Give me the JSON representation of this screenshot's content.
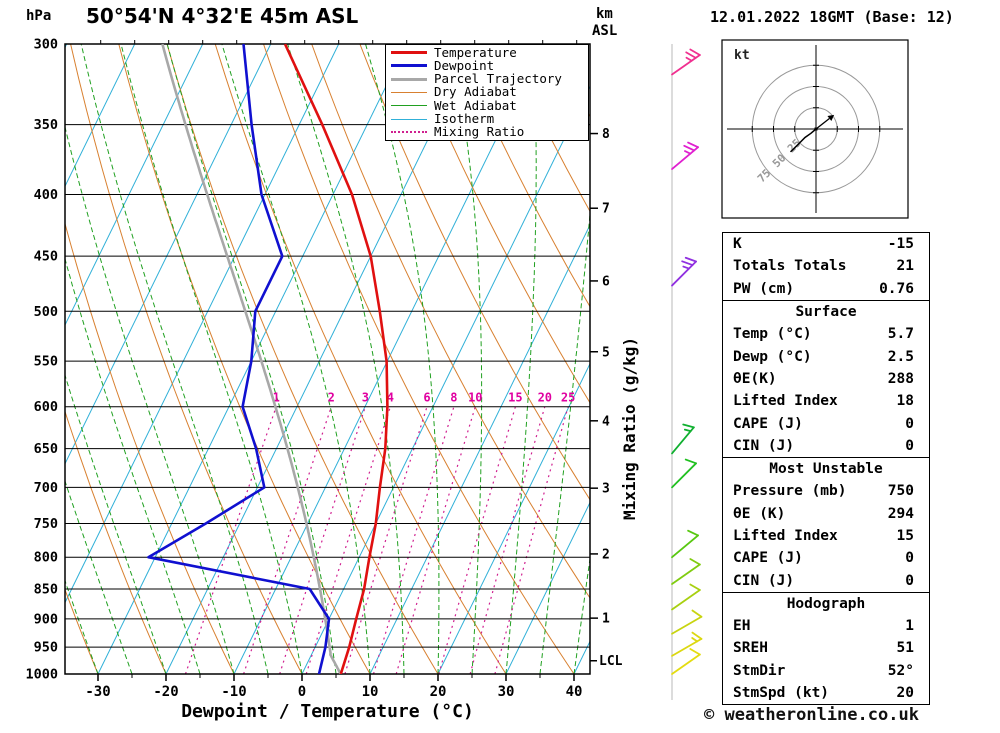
{
  "header": {
    "title": "50°54'N 4°32'E 45m ASL",
    "datetime": "12.01.2022 18GMT (Base: 12)"
  },
  "footer": {
    "copyright": "© weatheronline.co.uk"
  },
  "axes": {
    "pressure_unit": "hPa",
    "altitude_unit": "km",
    "altitude_ref": "ASL",
    "xlabel": "Dewpoint / Temperature (°C)",
    "mixing_label": "Mixing Ratio (g/kg)",
    "lcl_label": "LCL",
    "pressure_ticks": [
      300,
      350,
      400,
      450,
      500,
      550,
      600,
      650,
      700,
      750,
      800,
      850,
      900,
      950,
      1000
    ],
    "temp_ticks": [
      -30,
      -20,
      -10,
      0,
      10,
      20,
      30,
      40
    ],
    "km_ticks": [
      8,
      7,
      6,
      5,
      4,
      3,
      2,
      1
    ]
  },
  "legend": [
    {
      "label": "Temperature",
      "color": "#e01010",
      "style": "solid",
      "weight": 3
    },
    {
      "label": "Dewpoint",
      "color": "#1010d0",
      "style": "solid",
      "weight": 3
    },
    {
      "label": "Parcel Trajectory",
      "color": "#a8a8a8",
      "style": "solid",
      "weight": 3
    },
    {
      "label": "Dry Adiabat",
      "color": "#d88030",
      "style": "solid",
      "weight": 1
    },
    {
      "label": "Wet Adiabat",
      "color": "#20a020",
      "style": "solid",
      "weight": 1
    },
    {
      "label": "Isotherm",
      "color": "#30b0d8",
      "style": "solid",
      "weight": 1
    },
    {
      "label": "Mixing Ratio",
      "color": "#d02090",
      "style": "dotted",
      "weight": 2
    }
  ],
  "chart_data": {
    "type": "skewt-log-p",
    "pressure_range_hpa": [
      300,
      1000
    ],
    "temp_axis_range_c": [
      -40,
      45
    ],
    "isotherm_step_c": 10,
    "dry_adiabat_step_c": 10,
    "wet_adiabat_step_c": 5,
    "mixing_ratios": [
      1,
      2,
      3,
      4,
      6,
      8,
      10,
      15,
      20,
      25
    ],
    "temperature_profile": [
      {
        "p": 1000,
        "t": 5.7
      },
      {
        "p": 950,
        "t": 5.0
      },
      {
        "p": 900,
        "t": 4.0
      },
      {
        "p": 850,
        "t": 3.0
      },
      {
        "p": 800,
        "t": 1.5
      },
      {
        "p": 750,
        "t": 0.0
      },
      {
        "p": 700,
        "t": -2.0
      },
      {
        "p": 650,
        "t": -4.0
      },
      {
        "p": 600,
        "t": -6.7
      },
      {
        "p": 550,
        "t": -10.1
      },
      {
        "p": 500,
        "t": -14.7
      },
      {
        "p": 450,
        "t": -20.0
      },
      {
        "p": 400,
        "t": -27.2
      },
      {
        "p": 350,
        "t": -36.6
      },
      {
        "p": 300,
        "t": -47.9
      }
    ],
    "dewpoint_profile": [
      {
        "p": 1000,
        "t": 2.5
      },
      {
        "p": 950,
        "t": 1.5
      },
      {
        "p": 900,
        "t": 0.0
      },
      {
        "p": 850,
        "t": -5.0
      },
      {
        "p": 800,
        "t": -31.0
      },
      {
        "p": 750,
        "t": -25.0
      },
      {
        "p": 700,
        "t": -19.0
      },
      {
        "p": 650,
        "t": -23.0
      },
      {
        "p": 600,
        "t": -28.0
      },
      {
        "p": 550,
        "t": -30.0
      },
      {
        "p": 500,
        "t": -33.0
      },
      {
        "p": 450,
        "t": -33.0
      },
      {
        "p": 400,
        "t": -40.5
      },
      {
        "p": 350,
        "t": -47.0
      },
      {
        "p": 300,
        "t": -54.0
      }
    ],
    "parcel": {
      "surface_temp_c": 5.7,
      "surface_dewp_c": 2.5,
      "lcl_pressure_hpa": 963
    }
  },
  "hodograph": {
    "unit": "kt",
    "rings": [
      25,
      50,
      75
    ],
    "trace_uv_kt": [
      [
        0,
        0
      ],
      [
        -6,
        -5
      ],
      [
        -13,
        -10
      ],
      [
        -19,
        -16
      ],
      [
        -25,
        -22
      ],
      [
        -30,
        -27
      ]
    ],
    "storm_dir_deg": 52,
    "storm_speed_kt": 20
  },
  "wind_barbs": [
    {
      "p": 318,
      "dir_deg": 55,
      "spd_kt": 25,
      "color": "#f03090"
    },
    {
      "p": 381,
      "dir_deg": 50,
      "spd_kt": 25,
      "color": "#e020d0"
    },
    {
      "p": 476,
      "dir_deg": 45,
      "spd_kt": 25,
      "color": "#9030e0"
    },
    {
      "p": 656,
      "dir_deg": 40,
      "spd_kt": 15,
      "color": "#10b030"
    },
    {
      "p": 700,
      "dir_deg": 45,
      "spd_kt": 10,
      "color": "#20c020"
    },
    {
      "p": 800,
      "dir_deg": 50,
      "spd_kt": 10,
      "color": "#58c810"
    },
    {
      "p": 842,
      "dir_deg": 55,
      "spd_kt": 10,
      "color": "#80cc10"
    },
    {
      "p": 884,
      "dir_deg": 55,
      "spd_kt": 10,
      "color": "#a8d010"
    },
    {
      "p": 926,
      "dir_deg": 60,
      "spd_kt": 10,
      "color": "#c8d410"
    },
    {
      "p": 966,
      "dir_deg": 60,
      "spd_kt": 15,
      "color": "#dcd810"
    },
    {
      "p": 1000,
      "dir_deg": 55,
      "spd_kt": 10,
      "color": "#e4dc10"
    }
  ],
  "table": {
    "summary": [
      {
        "label": "K",
        "value": "-15"
      },
      {
        "label": "Totals Totals",
        "value": "21"
      },
      {
        "label": "PW (cm)",
        "value": "0.76"
      }
    ],
    "surface": {
      "header": "Surface",
      "rows": [
        {
          "label": "Temp (°C)",
          "value": "5.7"
        },
        {
          "label": "Dewp (°C)",
          "value": "2.5"
        },
        {
          "label": "θE(K)",
          "value": "288"
        },
        {
          "label": "Lifted Index",
          "value": "18"
        },
        {
          "label": "CAPE (J)",
          "value": "0"
        },
        {
          "label": "CIN (J)",
          "value": "0"
        }
      ]
    },
    "most_unstable": {
      "header": "Most Unstable",
      "rows": [
        {
          "label": "Pressure (mb)",
          "value": "750"
        },
        {
          "label": "θE (K)",
          "value": "294"
        },
        {
          "label": "Lifted Index",
          "value": "15"
        },
        {
          "label": "CAPE (J)",
          "value": "0"
        },
        {
          "label": "CIN (J)",
          "value": "0"
        }
      ]
    },
    "hodograph_info": {
      "header": "Hodograph",
      "rows": [
        {
          "label": "EH",
          "value": "1"
        },
        {
          "label": "SREH",
          "value": "51"
        },
        {
          "label": "StmDir",
          "value": "52°"
        },
        {
          "label": "StmSpd (kt)",
          "value": "20"
        }
      ]
    }
  }
}
